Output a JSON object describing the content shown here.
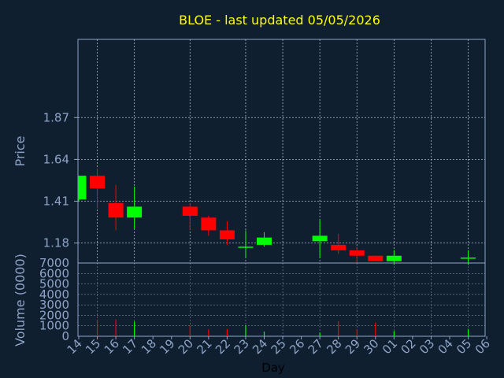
{
  "chart_data": [
    {
      "type": "candlestick",
      "title": "BLOE - last updated 05/05/2026",
      "ylabel": "Price",
      "yticks": [
        "1.87",
        "1.64",
        "1.41",
        "1.18"
      ],
      "ylim": [
        1.07,
        2.3
      ],
      "x_domain": [
        0,
        21
      ],
      "grid": true,
      "candles": [
        {
          "i": 0,
          "open": 1.42,
          "high": 1.55,
          "low": 1.41,
          "close": 1.55
        },
        {
          "i": 1,
          "open": 1.55,
          "high": 1.59,
          "low": 1.37,
          "close": 1.48
        },
        {
          "i": 2,
          "open": 1.4,
          "high": 1.5,
          "low": 1.25,
          "close": 1.32
        },
        {
          "i": 3,
          "open": 1.32,
          "high": 1.49,
          "low": 1.26,
          "close": 1.38
        },
        {
          "i": 6,
          "open": 1.38,
          "high": 1.4,
          "low": 1.25,
          "close": 1.33
        },
        {
          "i": 7,
          "open": 1.32,
          "high": 1.33,
          "low": 1.22,
          "close": 1.25
        },
        {
          "i": 8,
          "open": 1.25,
          "high": 1.3,
          "low": 1.17,
          "close": 1.2
        },
        {
          "i": 9,
          "open": 1.16,
          "high": 1.25,
          "low": 1.1,
          "close": 1.16
        },
        {
          "i": 10,
          "open": 1.17,
          "high": 1.24,
          "low": 1.16,
          "close": 1.21
        },
        {
          "i": 13,
          "open": 1.19,
          "high": 1.31,
          "low": 1.1,
          "close": 1.22
        },
        {
          "i": 14,
          "open": 1.17,
          "high": 1.23,
          "low": 1.12,
          "close": 1.14
        },
        {
          "i": 15,
          "open": 1.14,
          "high": 1.16,
          "low": 1.07,
          "close": 1.11
        },
        {
          "i": 16,
          "open": 1.11,
          "high": 1.11,
          "low": 1.08,
          "close": 1.08
        },
        {
          "i": 17,
          "open": 1.08,
          "high": 1.14,
          "low": 1.06,
          "close": 1.11
        },
        {
          "i": 21,
          "open": 1.1,
          "high": 1.14,
          "low": 1.06,
          "close": 1.1
        }
      ],
      "up_color": "#00ff00",
      "down_color": "#ff0000"
    },
    {
      "type": "bar",
      "ylabel": "Volume (0000)",
      "xlabel": "Day",
      "yticks": [
        "7000",
        "6000",
        "5000",
        "4000",
        "3000",
        "2000",
        "1000",
        "0"
      ],
      "ylim": [
        0,
        7000
      ],
      "x_labels": [
        "14",
        "15",
        "16",
        "17",
        "18",
        "19",
        "20",
        "21",
        "22",
        "23",
        "24",
        "25",
        "26",
        "27",
        "28",
        "29",
        "30",
        "01",
        "02",
        "03",
        "04",
        "05",
        "06"
      ],
      "volumes": [
        {
          "i": 1,
          "value": 1500,
          "dir": "down"
        },
        {
          "i": 2,
          "value": 1600,
          "dir": "down"
        },
        {
          "i": 3,
          "value": 1400,
          "dir": "up"
        },
        {
          "i": 6,
          "value": 1050,
          "dir": "down"
        },
        {
          "i": 7,
          "value": 650,
          "dir": "down"
        },
        {
          "i": 8,
          "value": 700,
          "dir": "down"
        },
        {
          "i": 9,
          "value": 1050,
          "dir": "up"
        },
        {
          "i": 10,
          "value": 450,
          "dir": "up"
        },
        {
          "i": 13,
          "value": 350,
          "dir": "up"
        },
        {
          "i": 14,
          "value": 1450,
          "dir": "down"
        },
        {
          "i": 15,
          "value": 650,
          "dir": "down"
        },
        {
          "i": 16,
          "value": 1300,
          "dir": "down"
        },
        {
          "i": 17,
          "value": 500,
          "dir": "up"
        },
        {
          "i": 21,
          "value": 700,
          "dir": "up"
        }
      ]
    }
  ],
  "colors": {
    "background": "#0f1f30",
    "frame": "#8ea3c6",
    "grid": "#a9b7c9",
    "title": "#ffff00",
    "text": "#8ea3c6",
    "xlabel": "#000000"
  }
}
